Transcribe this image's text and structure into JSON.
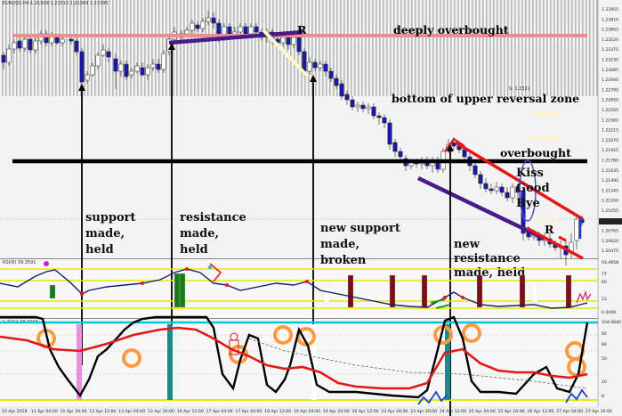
{
  "window": {
    "symbol_title": "EURUSD,H4 1.21509 1.21512 1.21369 1.21395",
    "rsi_title": "RSI(8) 39.3591",
    "osc_title": "1.3724 28.9068",
    "current_price": "1.21395"
  },
  "zones": {
    "deeply_overbought": "deeply overbought",
    "bottom_upper_reversal": "bottom of upper reversal zone",
    "overbought": "overbought",
    "s_level": "S: 1.2321"
  },
  "annotations": {
    "support": [
      "support",
      "made,",
      "held"
    ],
    "resistance": [
      "resistance",
      "made,",
      "held"
    ],
    "new_support": [
      "new support",
      "made,",
      "broken"
    ],
    "new_resistance": [
      "new",
      "resistance",
      "made, held"
    ],
    "kiss_good_bye": [
      "Kiss",
      "Good",
      "Bye"
    ],
    "r_label_top": "R",
    "r_label_bottom": "R"
  },
  "price_axis": [
    "1.23955",
    "1.23810",
    "1.23665",
    "1.23520",
    "1.23375",
    "1.23230",
    "1.23085",
    "1.22940",
    "1.22795",
    "1.22650",
    "1.22505",
    "1.22360",
    "1.22215",
    "1.22070",
    "1.21925",
    "1.21780",
    "1.21635",
    "1.21490",
    "1.21345",
    "1.21200",
    "1.21055",
    "1.20910",
    "1.20765",
    "1.20620",
    "1.20475"
  ],
  "rsi_axis": [
    "93.4958",
    "77",
    "60",
    "23",
    "6.4449"
  ],
  "osc_axis": [
    "104.0840",
    "92",
    "80",
    "50",
    "20",
    "8"
  ],
  "time_axis": [
    "10 Apr 2018",
    "11 Apr 04:00",
    "11 Apr 20:00",
    "12 Apr 12:00",
    "13 Apr 04:00",
    "13 Apr 20:00",
    "16 Apr 12:00",
    "17 Apr 04:00",
    "17 Apr 20:00",
    "18 Apr 12:00",
    "19 Apr 04:00",
    "19 Apr 20:00",
    "20 Apr 12:00",
    "23 Apr 04:00",
    "23 Apr 20:00",
    "24 Apr 12:00",
    "25 Apr 04:00",
    "25 Apr 20:00",
    "26 Apr 12:00",
    "27 Apr 04:00",
    "27 Apr 20:00"
  ],
  "colors": {
    "bull": "#ffffff",
    "bear": "#1a1aa8",
    "rsi_line": "#1a1a70",
    "signal": "#e31818",
    "stoch": "#000000",
    "zone_pink": "#f08c8c",
    "trend_purple": "#4a1a8c",
    "overbought_cream": "#fff2cc"
  }
}
